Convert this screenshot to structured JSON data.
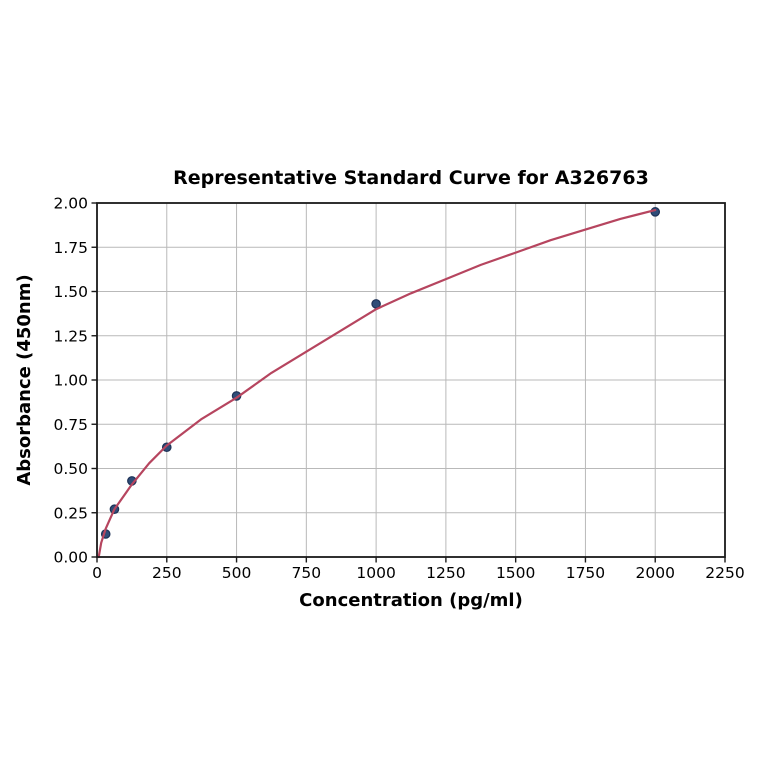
{
  "chart_data": {
    "type": "scatter",
    "title": "Representative Standard Curve for A326763",
    "xlabel": "Concentration (pg/ml)",
    "ylabel": "Absorbance (450nm)",
    "xlim": [
      0,
      2250
    ],
    "ylim": [
      0.0,
      2.0
    ],
    "x_ticks": [
      "0",
      "250",
      "500",
      "750",
      "1000",
      "1250",
      "1500",
      "1750",
      "2000",
      "2250"
    ],
    "x_tick_values": [
      0,
      250,
      500,
      750,
      1000,
      1250,
      1500,
      1750,
      2000,
      2250
    ],
    "y_ticks": [
      "0.00",
      "0.25",
      "0.50",
      "0.75",
      "1.00",
      "1.25",
      "1.50",
      "1.75",
      "2.00"
    ],
    "y_tick_values": [
      0.0,
      0.25,
      0.5,
      0.75,
      1.0,
      1.25,
      1.5,
      1.75,
      2.0
    ],
    "grid": true,
    "legend": "none",
    "series": [
      {
        "name": "standard-points",
        "type": "scatter",
        "x": [
          31.25,
          62.5,
          125,
          250,
          500,
          1000,
          2000
        ],
        "y": [
          0.13,
          0.27,
          0.43,
          0.62,
          0.91,
          1.43,
          1.95
        ]
      },
      {
        "name": "fitted-curve",
        "type": "line",
        "x": [
          6,
          15,
          31.25,
          62.5,
          125,
          187,
          250,
          375,
          500,
          625,
          750,
          875,
          1000,
          1125,
          1250,
          1375,
          1500,
          1625,
          1750,
          1875,
          2000
        ],
        "y": [
          0.0,
          0.08,
          0.16,
          0.27,
          0.41,
          0.53,
          0.63,
          0.78,
          0.9,
          1.04,
          1.16,
          1.28,
          1.4,
          1.49,
          1.57,
          1.65,
          1.72,
          1.79,
          1.85,
          1.91,
          1.96
        ]
      }
    ]
  },
  "colors": {
    "curve": "#b6455f",
    "marker_fill": "#2f4d78",
    "marker_edge": "#1d3156",
    "grid": "#b9b9b9",
    "spine": "#1a1a1a",
    "tick": "#1a1a1a",
    "background": "#ffffff"
  },
  "layout_values": {
    "marker_radius": 4.2,
    "curve_width": 2.2,
    "grid_width": 1,
    "spine_width": 1.8,
    "tick_length": 5.5
  }
}
